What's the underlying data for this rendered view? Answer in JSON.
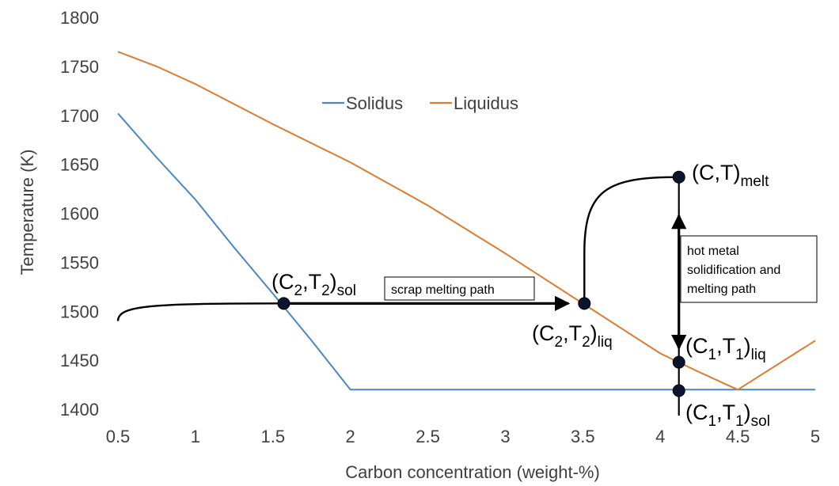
{
  "chart_data": {
    "type": "line",
    "xlabel": "Carbon concentration (weight-%)",
    "ylabel": "Temperature (K)",
    "xlim": [
      0.5,
      5
    ],
    "ylim": [
      1400,
      1800
    ],
    "x_ticks": [
      "0.5",
      "1",
      "1.5",
      "2",
      "2.5",
      "3",
      "3.5",
      "4",
      "4.5",
      "5"
    ],
    "y_ticks": [
      "1400",
      "1450",
      "1500",
      "1550",
      "1600",
      "1650",
      "1700",
      "1750",
      "1800"
    ],
    "grid": false,
    "legend_position": "top-center",
    "series": [
      {
        "name": "Solidus",
        "color": "#4a86c5",
        "x": [
          0.5,
          0.75,
          1.0,
          1.25,
          1.5,
          1.75,
          2.0,
          2.5,
          3.0,
          3.5,
          4.0,
          4.5,
          5.0
        ],
        "y": [
          1702,
          1657,
          1614,
          1565,
          1518,
          1470,
          1420,
          1420,
          1420,
          1420,
          1420,
          1420,
          1420
        ]
      },
      {
        "name": "Liquidus",
        "color": "#e07a2f",
        "x": [
          0.5,
          0.75,
          1.0,
          1.5,
          2.0,
          2.5,
          3.0,
          3.5,
          4.0,
          4.25,
          4.5,
          5.0
        ],
        "y": [
          1765,
          1750,
          1732,
          1691,
          1652,
          1608,
          1559,
          1508,
          1457,
          1438,
          1420,
          1470
        ]
      }
    ],
    "points": [
      {
        "id": "c2t2-sol",
        "x": 1.57,
        "y": 1508
      },
      {
        "id": "c2t2-liq",
        "x": 3.51,
        "y": 1508
      },
      {
        "id": "ct-melt",
        "x": 4.12,
        "y": 1637
      },
      {
        "id": "c1t1-liq",
        "x": 4.12,
        "y": 1448
      },
      {
        "id": "c1t1-sol",
        "x": 4.12,
        "y": 1419
      }
    ],
    "annotations": {
      "c2t2_sol": {
        "main": "(C",
        "s1": "2",
        "mid": ",T",
        "s2": "2",
        "close": ")",
        "s3": "sol"
      },
      "c2t2_liq": {
        "main": "(C",
        "s1": "2",
        "mid": ",T",
        "s2": "2",
        "close": ")",
        "s3": "liq"
      },
      "ct_melt": {
        "main": "(C,T)",
        "s3": "melt"
      },
      "c1t1_liq": {
        "main": "(C",
        "s1": "1",
        "mid": ",T",
        "s2": "1",
        "close": ")",
        "s3": "liq"
      },
      "c1t1_sol": {
        "main": "(C",
        "s1": "1",
        "mid": ",T",
        "s2": "1",
        "close": ")",
        "s3": "sol"
      },
      "scrap_box": "scrap melting path",
      "hot_metal_box": [
        "hot metal",
        "solidification and",
        "melting path"
      ]
    }
  }
}
